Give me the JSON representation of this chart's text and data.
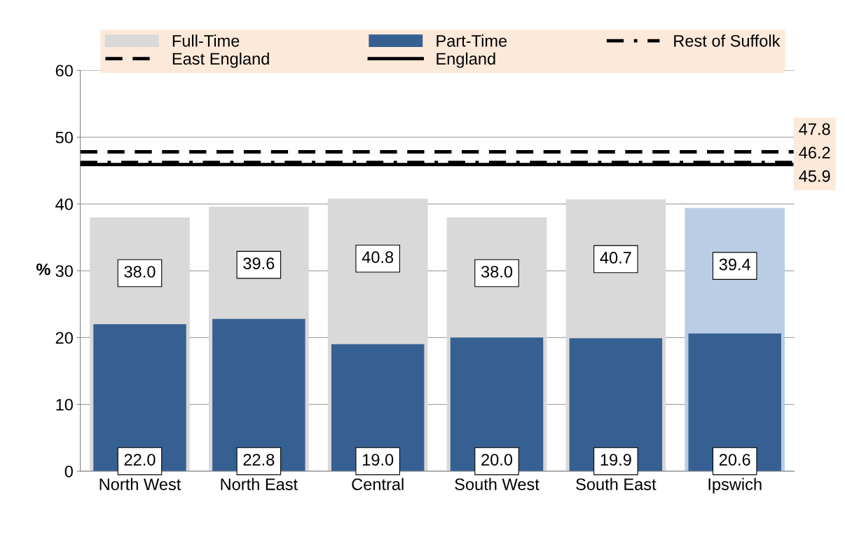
{
  "chart_data": {
    "type": "bar",
    "ylabel": "%",
    "categories": [
      "North West",
      "North East",
      "Central",
      "South West",
      "South East",
      "Ipswich"
    ],
    "series": [
      {
        "name": "Full-Time",
        "color": "#d9d9d9",
        "colors": [
          "#d9d9d9",
          "#d9d9d9",
          "#d9d9d9",
          "#d9d9d9",
          "#d9d9d9",
          "#b9cde5"
        ],
        "values": [
          38.0,
          39.6,
          40.8,
          38.0,
          40.7,
          39.4
        ],
        "value_labels": [
          "38.0",
          "39.6",
          "40.8",
          "38.0",
          "40.7",
          "39.4"
        ]
      },
      {
        "name": "Part-Time",
        "color": "#376092",
        "values": [
          22.0,
          22.8,
          19.0,
          20.0,
          19.9,
          20.6
        ],
        "value_labels": [
          "22.0",
          "22.8",
          "19.0",
          "20.0",
          "19.9",
          "20.6"
        ]
      }
    ],
    "ref_lines": [
      {
        "axis": "y",
        "value": 46.2,
        "label": "Rest of Suffolk",
        "color": "#000000",
        "line_style": "dashdot"
      },
      {
        "axis": "y",
        "value": 47.8,
        "label": "East England",
        "color": "#000000",
        "line_style": "dashed"
      },
      {
        "axis": "y",
        "value": 45.9,
        "label": "England",
        "color": "#000000",
        "line_style": "solid"
      }
    ],
    "annotations": [
      "47.8",
      "46.2",
      "45.9"
    ],
    "ylim": [
      0,
      60
    ],
    "yticks": [
      0,
      10,
      20,
      30,
      40,
      50,
      60
    ],
    "grid": "y",
    "legend": "top"
  }
}
